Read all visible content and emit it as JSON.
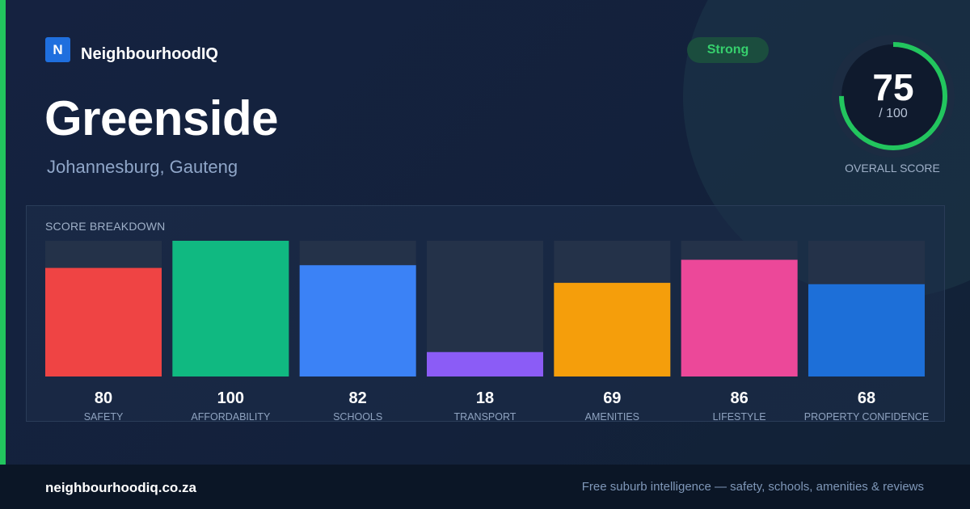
{
  "brand": {
    "logo_letter": "N",
    "name": "NeighbourhoodIQ"
  },
  "suburb": {
    "name": "Greenside",
    "location": "Johannesburg, Gauteng"
  },
  "badge": {
    "label": "Strong",
    "color": "#36d06d"
  },
  "overall": {
    "score": "75",
    "max": "/ 100",
    "value": 75,
    "label": "OVERALL SCORE",
    "ring_color": "#22c55e"
  },
  "breakdown": {
    "title": "SCORE BREAKDOWN"
  },
  "chart_data": {
    "type": "bar",
    "title": "SCORE BREAKDOWN",
    "categories": [
      "SAFETY",
      "AFFORDABILITY",
      "SCHOOLS",
      "TRANSPORT",
      "AMENITIES",
      "LIFESTYLE",
      "PROPERTY CONFIDENCE"
    ],
    "values": [
      80,
      100,
      82,
      18,
      69,
      86,
      68
    ],
    "colors": [
      "#ef4444",
      "#10b981",
      "#3b82f6",
      "#8b5cf6",
      "#f59e0b",
      "#ec4899",
      "#1d6fd8"
    ],
    "ylim": [
      0,
      100
    ],
    "grid": false,
    "legend": "none"
  },
  "footer": {
    "url": "neighbourhoodiq.co.za",
    "tagline": "Free suburb intelligence — safety, schools, amenities & reviews"
  }
}
